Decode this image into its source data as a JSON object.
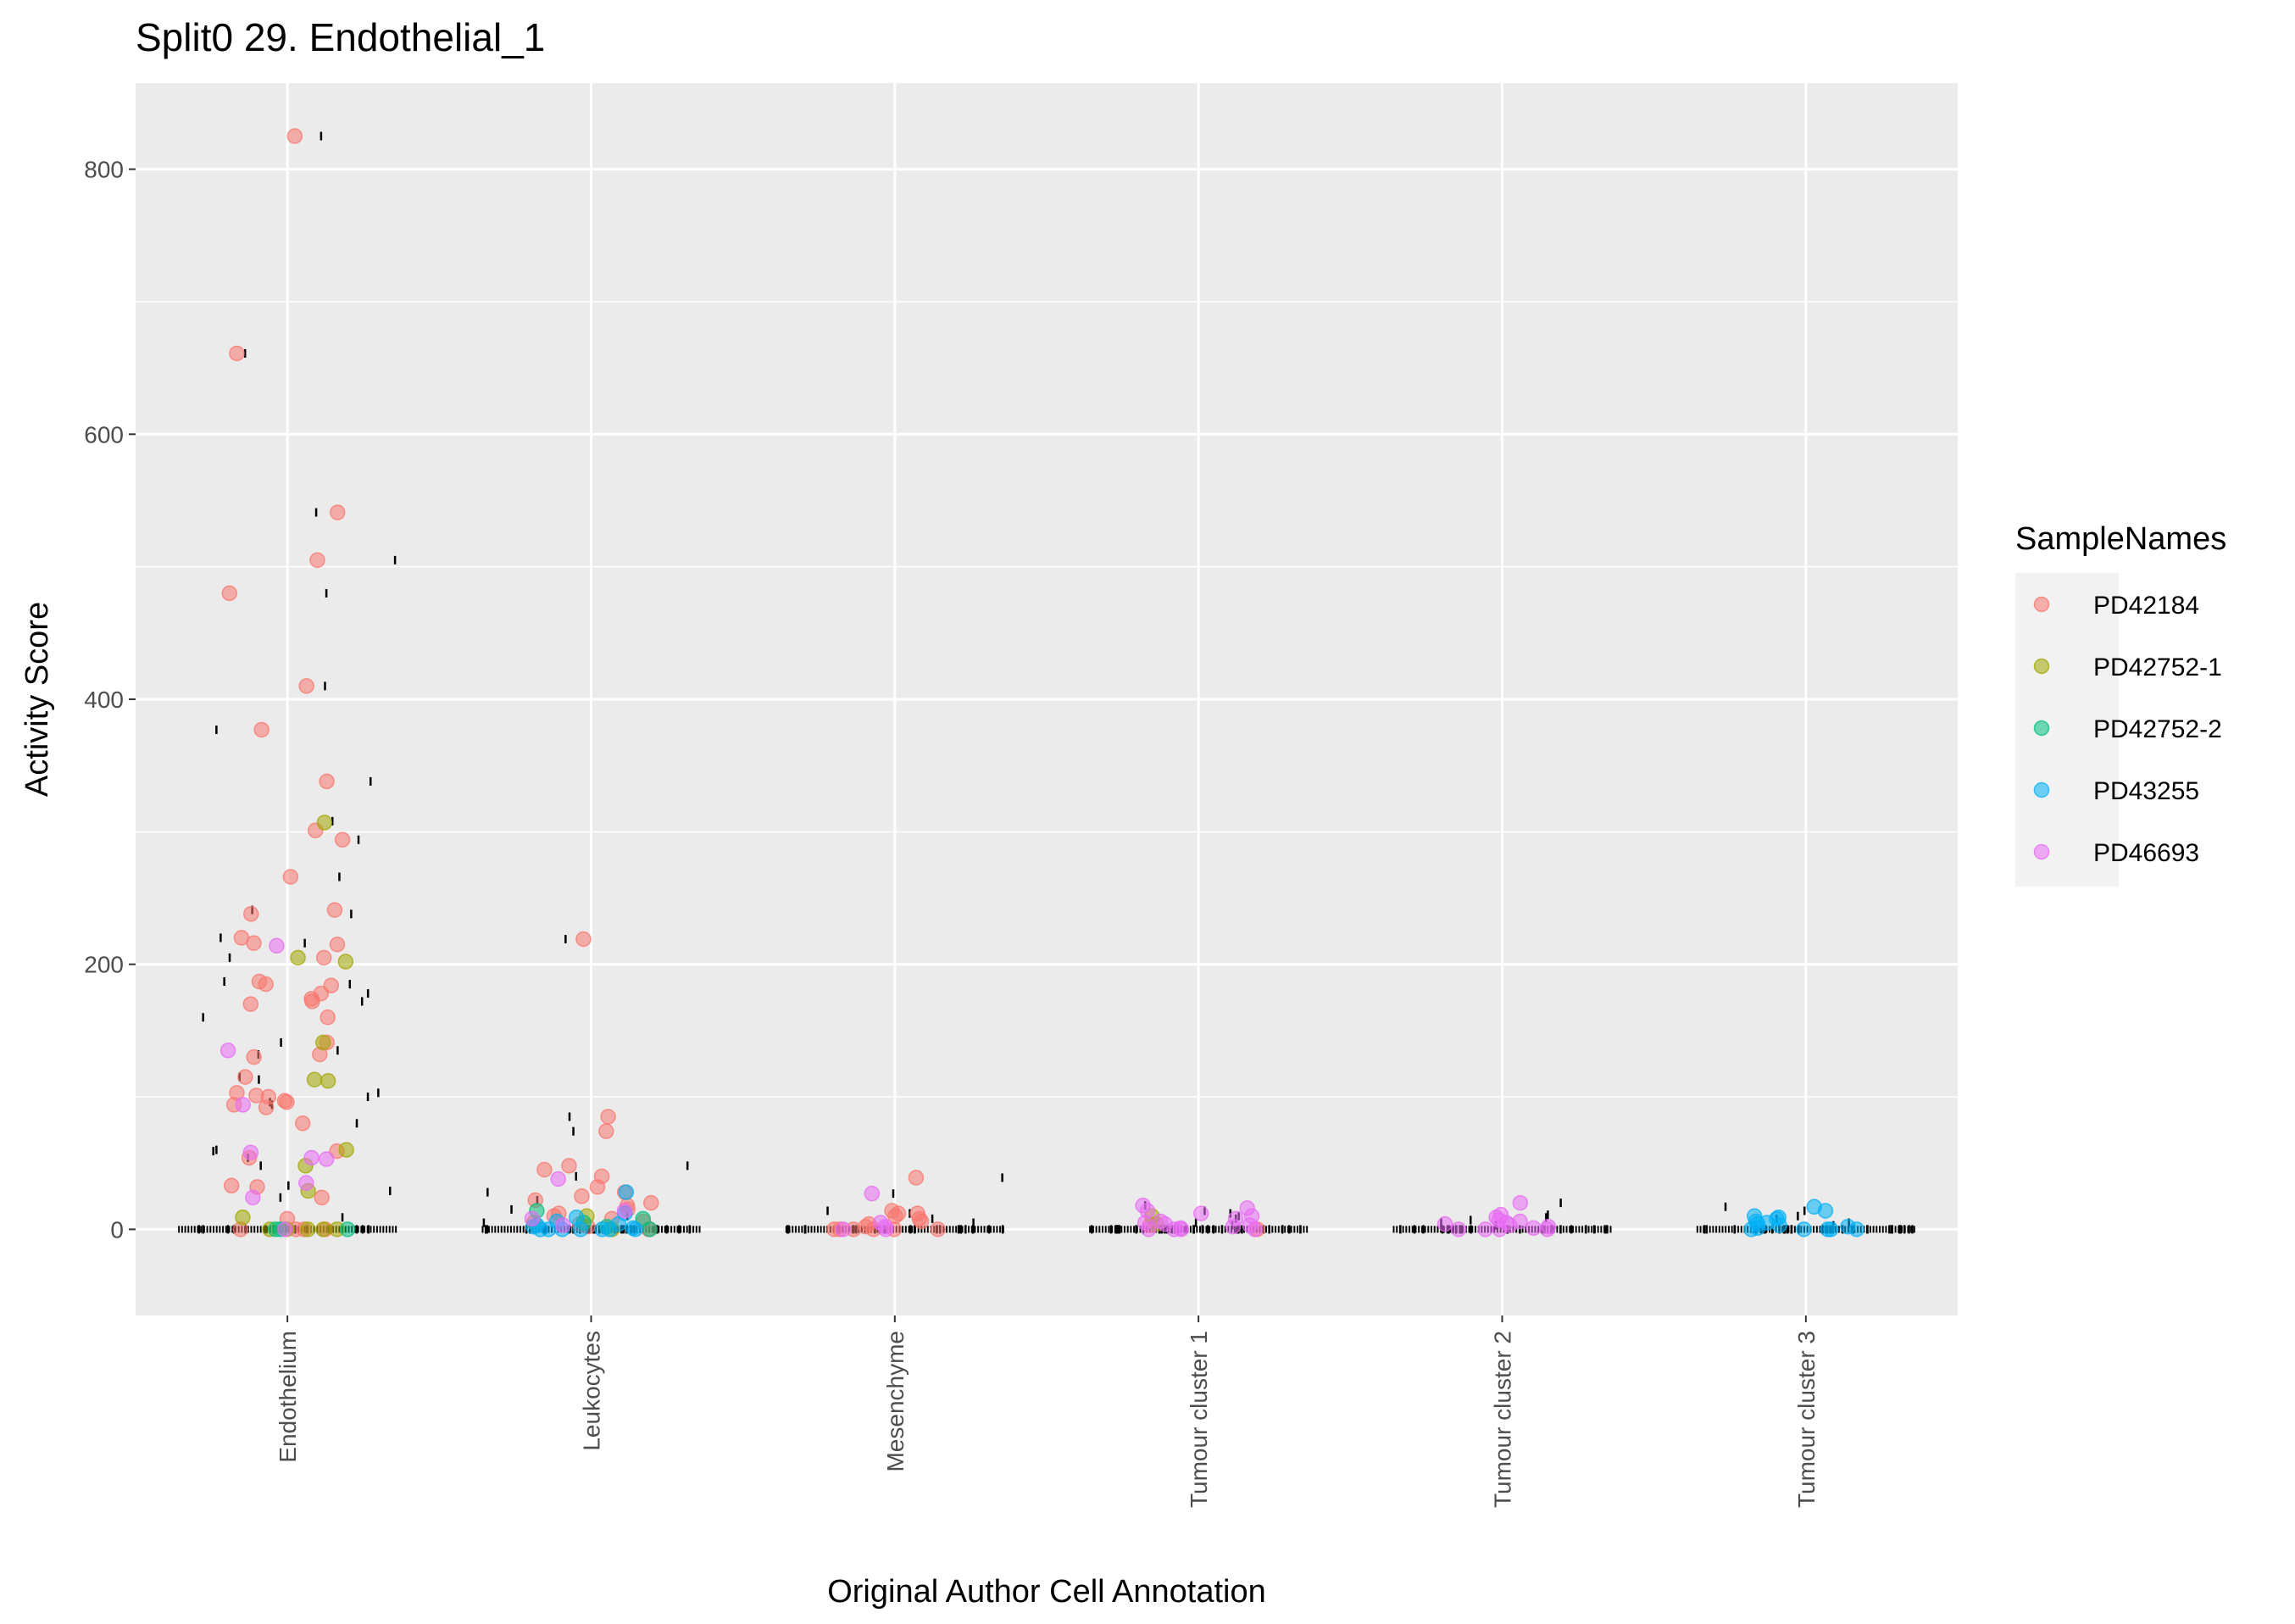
{
  "chart_data": {
    "type": "scatter",
    "title": "Split0 29. Endothelial_1",
    "xlabel": "Original Author Cell Annotation",
    "ylabel": "Activity Score",
    "categories": [
      "Endothelium",
      "Leukocytes",
      "Mesenchyme",
      "Tumour cluster 1",
      "Tumour cluster 2",
      "Tumour cluster 3"
    ],
    "ylim": [
      -65,
      865
    ],
    "yticks": [
      "0",
      "200",
      "400",
      "600",
      "800"
    ],
    "grid": true,
    "legend": {
      "title": "SampleNames",
      "position": "right"
    },
    "series": [
      {
        "name": "PD42184",
        "color": "#F8766D",
        "points": [
          [
            "Endothelium",
            825
          ],
          [
            "Endothelium",
            661
          ],
          [
            "Endothelium",
            541
          ],
          [
            "Endothelium",
            505
          ],
          [
            "Endothelium",
            480
          ],
          [
            "Endothelium",
            410
          ],
          [
            "Endothelium",
            377
          ],
          [
            "Endothelium",
            338
          ],
          [
            "Endothelium",
            301
          ],
          [
            "Endothelium",
            294
          ],
          [
            "Endothelium",
            266
          ],
          [
            "Endothelium",
            241
          ],
          [
            "Endothelium",
            238
          ],
          [
            "Endothelium",
            220
          ],
          [
            "Endothelium",
            216
          ],
          [
            "Endothelium",
            215
          ],
          [
            "Endothelium",
            205
          ],
          [
            "Endothelium",
            187
          ],
          [
            "Endothelium",
            185
          ],
          [
            "Endothelium",
            184
          ],
          [
            "Endothelium",
            178
          ],
          [
            "Endothelium",
            174
          ],
          [
            "Endothelium",
            172
          ],
          [
            "Endothelium",
            170
          ],
          [
            "Endothelium",
            160
          ],
          [
            "Endothelium",
            141
          ],
          [
            "Endothelium",
            132
          ],
          [
            "Endothelium",
            130
          ],
          [
            "Endothelium",
            115
          ],
          [
            "Endothelium",
            103
          ],
          [
            "Endothelium",
            101
          ],
          [
            "Endothelium",
            100
          ],
          [
            "Endothelium",
            97
          ],
          [
            "Endothelium",
            96
          ],
          [
            "Endothelium",
            94
          ],
          [
            "Endothelium",
            92
          ],
          [
            "Endothelium",
            80
          ],
          [
            "Endothelium",
            59
          ],
          [
            "Endothelium",
            54
          ],
          [
            "Endothelium",
            33
          ],
          [
            "Endothelium",
            32
          ],
          [
            "Endothelium",
            24
          ],
          [
            "Endothelium",
            8
          ],
          [
            "Endothelium",
            0
          ],
          [
            "Endothelium",
            0
          ],
          [
            "Endothelium",
            0
          ],
          [
            "Endothelium",
            0
          ],
          [
            "Leukocytes",
            219
          ],
          [
            "Leukocytes",
            85
          ],
          [
            "Leukocytes",
            74
          ],
          [
            "Leukocytes",
            48
          ],
          [
            "Leukocytes",
            45
          ],
          [
            "Leukocytes",
            40
          ],
          [
            "Leukocytes",
            32
          ],
          [
            "Leukocytes",
            28
          ],
          [
            "Leukocytes",
            25
          ],
          [
            "Leukocytes",
            22
          ],
          [
            "Leukocytes",
            20
          ],
          [
            "Leukocytes",
            18
          ],
          [
            "Leukocytes",
            15
          ],
          [
            "Leukocytes",
            12
          ],
          [
            "Leukocytes",
            10
          ],
          [
            "Leukocytes",
            8
          ],
          [
            "Leukocytes",
            6
          ],
          [
            "Leukocytes",
            4
          ],
          [
            "Leukocytes",
            2
          ],
          [
            "Leukocytes",
            0
          ],
          [
            "Mesenchyme",
            39
          ],
          [
            "Mesenchyme",
            14
          ],
          [
            "Mesenchyme",
            12
          ],
          [
            "Mesenchyme",
            12
          ],
          [
            "Mesenchyme",
            10
          ],
          [
            "Mesenchyme",
            8
          ],
          [
            "Mesenchyme",
            6
          ],
          [
            "Mesenchyme",
            4
          ],
          [
            "Mesenchyme",
            2
          ],
          [
            "Mesenchyme",
            0
          ],
          [
            "Mesenchyme",
            0
          ],
          [
            "Mesenchyme",
            0
          ],
          [
            "Mesenchyme",
            0
          ],
          [
            "Mesenchyme",
            0
          ],
          [
            "Mesenchyme",
            0
          ],
          [
            "Tumour cluster 1",
            3
          ],
          [
            "Tumour cluster 1",
            0
          ]
        ]
      },
      {
        "name": "PD42752-1",
        "color": "#A3A500",
        "points": [
          [
            "Endothelium",
            307
          ],
          [
            "Endothelium",
            205
          ],
          [
            "Endothelium",
            202
          ],
          [
            "Endothelium",
            141
          ],
          [
            "Endothelium",
            113
          ],
          [
            "Endothelium",
            112
          ],
          [
            "Endothelium",
            60
          ],
          [
            "Endothelium",
            48
          ],
          [
            "Endothelium",
            29
          ],
          [
            "Endothelium",
            9
          ],
          [
            "Endothelium",
            0
          ],
          [
            "Endothelium",
            0
          ],
          [
            "Endothelium",
            0
          ],
          [
            "Endothelium",
            0
          ],
          [
            "Endothelium",
            0
          ],
          [
            "Leukocytes",
            10
          ],
          [
            "Leukocytes",
            5
          ],
          [
            "Leukocytes",
            0
          ],
          [
            "Tumour cluster 1",
            10
          ],
          [
            "Tumour cluster 1",
            4
          ]
        ]
      },
      {
        "name": "PD42752-2",
        "color": "#00BF7D",
        "points": [
          [
            "Endothelium",
            0
          ],
          [
            "Endothelium",
            0
          ],
          [
            "Endothelium",
            0
          ],
          [
            "Leukocytes",
            14
          ],
          [
            "Leukocytes",
            8
          ],
          [
            "Leukocytes",
            5
          ],
          [
            "Leukocytes",
            2
          ],
          [
            "Leukocytes",
            0
          ]
        ]
      },
      {
        "name": "PD43255",
        "color": "#00B0F6",
        "points": [
          [
            "Leukocytes",
            28
          ],
          [
            "Leukocytes",
            12
          ],
          [
            "Leukocytes",
            9
          ],
          [
            "Leukocytes",
            6
          ],
          [
            "Leukocytes",
            4
          ],
          [
            "Leukocytes",
            3
          ],
          [
            "Leukocytes",
            2
          ],
          [
            "Leukocytes",
            1
          ],
          [
            "Leukocytes",
            0
          ],
          [
            "Leukocytes",
            0
          ],
          [
            "Leukocytes",
            0
          ],
          [
            "Leukocytes",
            0
          ],
          [
            "Leukocytes",
            0
          ],
          [
            "Leukocytes",
            0
          ],
          [
            "Leukocytes",
            0
          ],
          [
            "Tumour cluster 3",
            17
          ],
          [
            "Tumour cluster 3",
            14
          ],
          [
            "Tumour cluster 3",
            10
          ],
          [
            "Tumour cluster 3",
            9
          ],
          [
            "Tumour cluster 3",
            8
          ],
          [
            "Tumour cluster 3",
            6
          ],
          [
            "Tumour cluster 3",
            5
          ],
          [
            "Tumour cluster 3",
            4
          ],
          [
            "Tumour cluster 3",
            3
          ],
          [
            "Tumour cluster 3",
            2
          ],
          [
            "Tumour cluster 3",
            1
          ],
          [
            "Tumour cluster 3",
            0
          ],
          [
            "Tumour cluster 3",
            0
          ],
          [
            "Tumour cluster 3",
            0
          ],
          [
            "Tumour cluster 3",
            0
          ],
          [
            "Tumour cluster 3",
            0
          ]
        ]
      },
      {
        "name": "PD46693",
        "color": "#E76BF3",
        "points": [
          [
            "Endothelium",
            214
          ],
          [
            "Endothelium",
            135
          ],
          [
            "Endothelium",
            94
          ],
          [
            "Endothelium",
            58
          ],
          [
            "Endothelium",
            54
          ],
          [
            "Endothelium",
            53
          ],
          [
            "Endothelium",
            35
          ],
          [
            "Endothelium",
            24
          ],
          [
            "Endothelium",
            0
          ],
          [
            "Leukocytes",
            38
          ],
          [
            "Leukocytes",
            14
          ],
          [
            "Leukocytes",
            8
          ],
          [
            "Leukocytes",
            3
          ],
          [
            "Mesenchyme",
            27
          ],
          [
            "Mesenchyme",
            5
          ],
          [
            "Mesenchyme",
            2
          ],
          [
            "Mesenchyme",
            0
          ],
          [
            "Mesenchyme",
            0
          ],
          [
            "Tumour cluster 1",
            18
          ],
          [
            "Tumour cluster 1",
            16
          ],
          [
            "Tumour cluster 1",
            14
          ],
          [
            "Tumour cluster 1",
            12
          ],
          [
            "Tumour cluster 1",
            10
          ],
          [
            "Tumour cluster 1",
            8
          ],
          [
            "Tumour cluster 1",
            6
          ],
          [
            "Tumour cluster 1",
            5
          ],
          [
            "Tumour cluster 1",
            4
          ],
          [
            "Tumour cluster 1",
            3
          ],
          [
            "Tumour cluster 1",
            2
          ],
          [
            "Tumour cluster 1",
            1
          ],
          [
            "Tumour cluster 1",
            0
          ],
          [
            "Tumour cluster 1",
            0
          ],
          [
            "Tumour cluster 1",
            0
          ],
          [
            "Tumour cluster 1",
            0
          ],
          [
            "Tumour cluster 2",
            20
          ],
          [
            "Tumour cluster 2",
            11
          ],
          [
            "Tumour cluster 2",
            9
          ],
          [
            "Tumour cluster 2",
            7
          ],
          [
            "Tumour cluster 2",
            6
          ],
          [
            "Tumour cluster 2",
            5
          ],
          [
            "Tumour cluster 2",
            4
          ],
          [
            "Tumour cluster 2",
            3
          ],
          [
            "Tumour cluster 2",
            2
          ],
          [
            "Tumour cluster 2",
            1
          ],
          [
            "Tumour cluster 2",
            0
          ],
          [
            "Tumour cluster 2",
            0
          ],
          [
            "Tumour cluster 2",
            0
          ],
          [
            "Tumour cluster 2",
            0
          ]
        ]
      }
    ],
    "rug_marks": {
      "Endothelium": [
        825,
        661,
        541,
        505,
        480,
        410,
        377,
        338,
        308,
        294,
        266,
        241,
        238,
        220,
        216,
        205,
        187,
        185,
        178,
        172,
        160,
        141,
        135,
        132,
        115,
        113,
        103,
        100,
        96,
        94,
        80,
        60,
        59,
        54,
        48,
        33,
        29,
        24,
        9,
        0,
        0,
        0,
        0,
        0,
        0,
        0,
        0,
        0,
        0,
        0,
        0,
        0,
        0,
        0
      ],
      "Leukocytes": [
        219,
        85,
        74,
        48,
        40,
        28,
        22,
        15,
        10,
        5,
        0,
        0,
        0,
        0,
        0,
        0,
        0,
        0,
        0,
        0,
        0,
        0,
        0,
        0,
        0,
        0,
        0,
        0,
        0,
        0,
        0,
        0,
        0,
        0,
        0,
        0,
        0,
        0,
        0,
        0
      ],
      "Mesenchyme": [
        39,
        27,
        14,
        12,
        8,
        5,
        0,
        0,
        0,
        0,
        0,
        0,
        0,
        0,
        0,
        0,
        0,
        0,
        0,
        0,
        0,
        0,
        0,
        0,
        0,
        0,
        0,
        0,
        0,
        0
      ],
      "Tumour cluster 1": [
        18,
        14,
        12,
        10,
        8,
        5,
        3,
        0,
        0,
        0,
        0,
        0,
        0,
        0,
        0,
        0,
        0,
        0,
        0,
        0,
        0,
        0,
        0,
        0,
        0,
        0,
        0,
        0,
        0,
        0,
        0,
        0,
        0,
        0,
        0,
        0,
        0,
        0,
        0,
        0
      ],
      "Tumour cluster 2": [
        20,
        11,
        9,
        7,
        5,
        3,
        0,
        0,
        0,
        0,
        0,
        0,
        0,
        0,
        0,
        0,
        0,
        0,
        0,
        0,
        0,
        0,
        0,
        0,
        0,
        0,
        0,
        0,
        0,
        0
      ],
      "Tumour cluster 3": [
        17,
        14,
        10,
        8,
        5,
        3,
        0,
        0,
        0,
        0,
        0,
        0,
        0,
        0,
        0,
        0,
        0,
        0,
        0,
        0,
        0,
        0,
        0,
        0,
        0,
        0,
        0,
        0,
        0,
        0,
        0,
        0,
        0,
        0,
        0,
        0,
        0,
        0,
        0,
        0
      ]
    }
  }
}
